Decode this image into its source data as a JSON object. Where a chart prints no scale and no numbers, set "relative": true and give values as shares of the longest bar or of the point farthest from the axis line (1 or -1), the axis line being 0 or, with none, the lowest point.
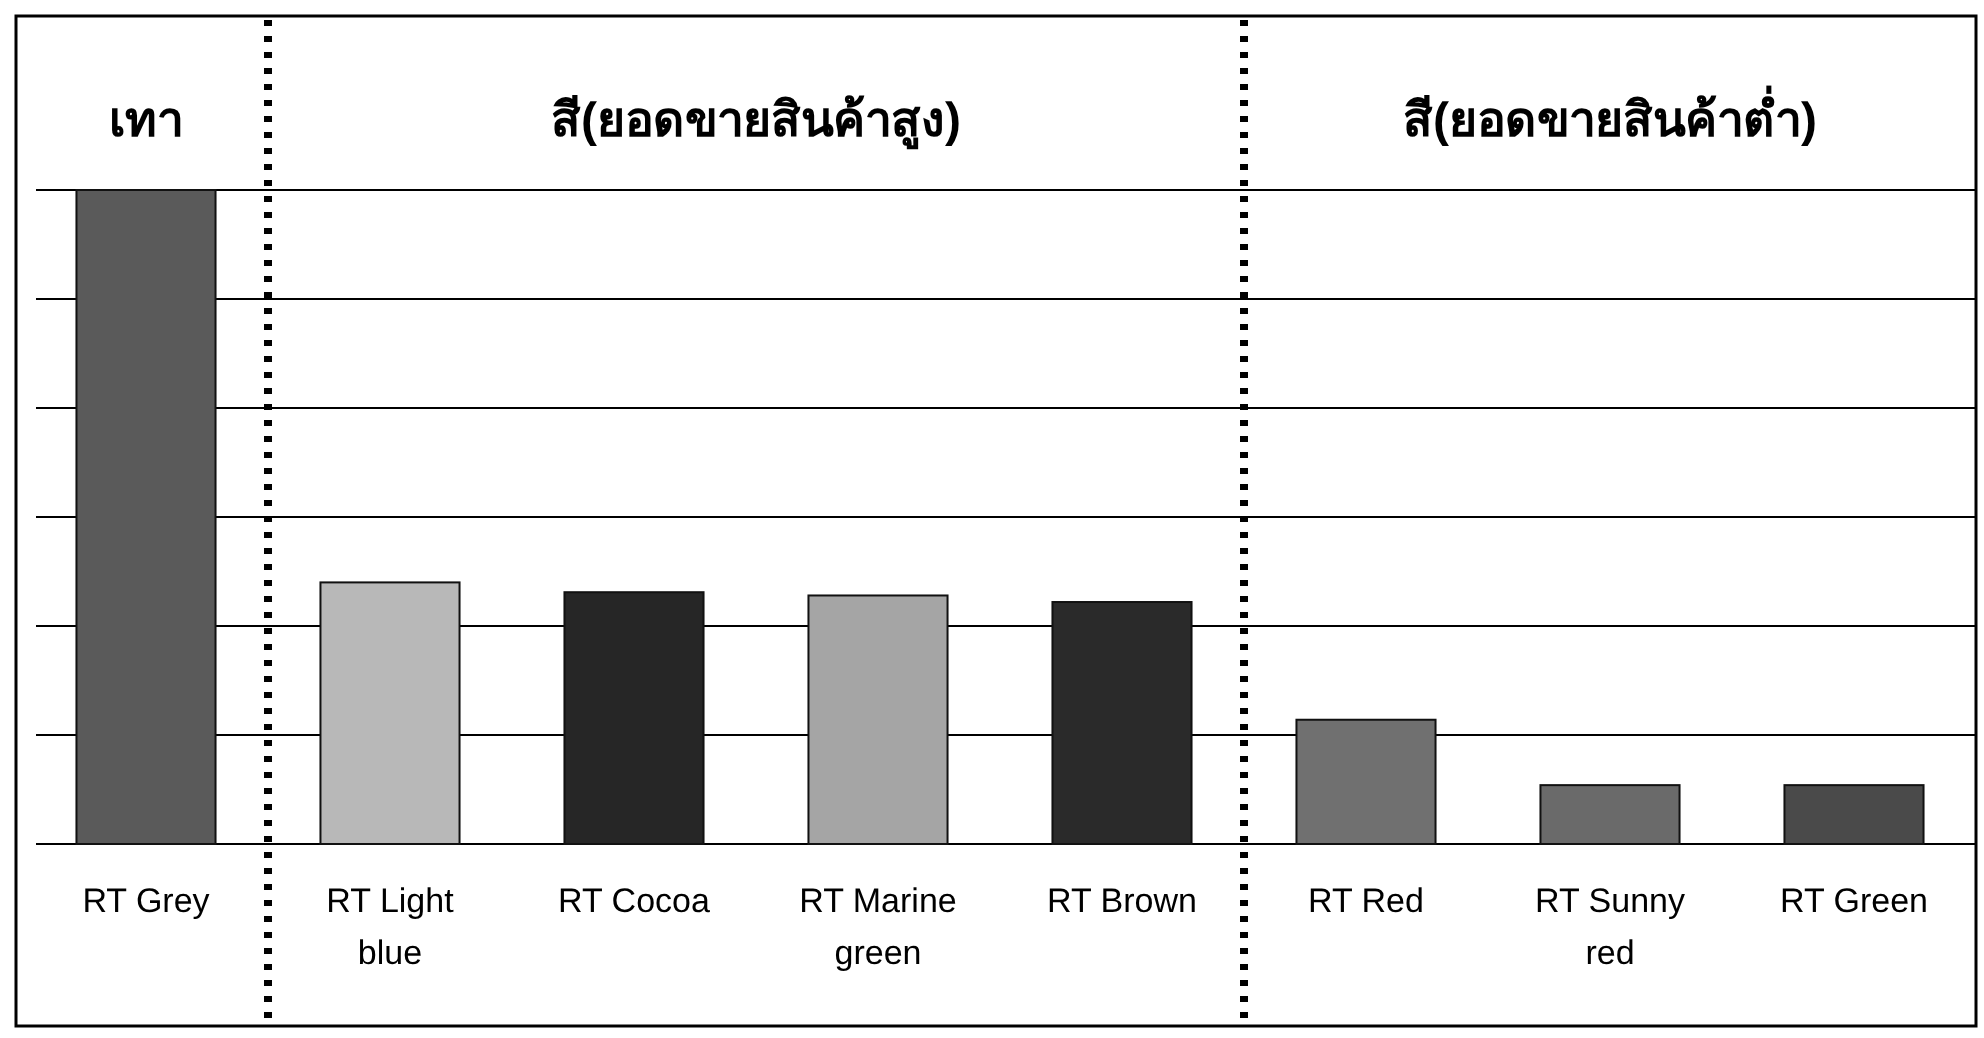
{
  "chart_data": {
    "type": "bar",
    "relative": true,
    "grid": "y",
    "categories": [
      "RT Grey",
      "RT Light blue",
      "RT Cocoa",
      "RT Marine green",
      "RT Brown",
      "RT Red",
      "RT Sunny red",
      "RT Green"
    ],
    "values": [
      1,
      0.4,
      0.385,
      0.38,
      0.37,
      0.19,
      0.09,
      0.09
    ],
    "colors": [
      "#5a5a5a",
      "#b8b8b8",
      "#262626",
      "#a5a5a5",
      "#2a2a2a",
      "#707070",
      "#6a6a6a",
      "#4a4a4a"
    ],
    "annotations": [
      "เทา",
      "สี(ยอดขายสินค้าสูง)",
      "สี(ยอดขายสินค้าต่ำ)"
    ]
  }
}
